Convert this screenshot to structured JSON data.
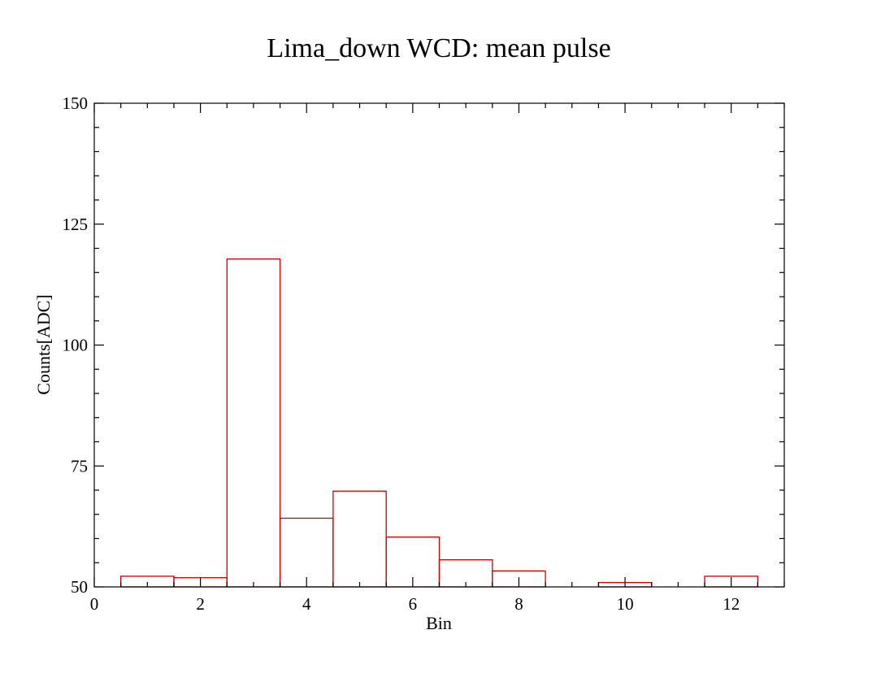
{
  "chart_data": {
    "type": "bar",
    "title": "Lima_down WCD: mean pulse",
    "xlabel": "Bin",
    "ylabel": "Counts[ADC]",
    "xlim": [
      0,
      13
    ],
    "ylim": [
      50,
      150
    ],
    "xticks": [
      0,
      2,
      4,
      6,
      8,
      10,
      12
    ],
    "yticks": [
      50,
      75,
      100,
      125,
      150
    ],
    "x_minor_step": 0.5,
    "y_minor_step": 5,
    "grid": false,
    "bar_width": 1,
    "bar_color": "#cc0000",
    "x": [
      1,
      2,
      3,
      4,
      5,
      6,
      7,
      8,
      9,
      10,
      11,
      12
    ],
    "values": [
      52.2,
      51.9,
      117.8,
      64.2,
      69.8,
      60.3,
      55.6,
      53.3,
      50,
      50.9,
      50,
      52.2
    ]
  }
}
